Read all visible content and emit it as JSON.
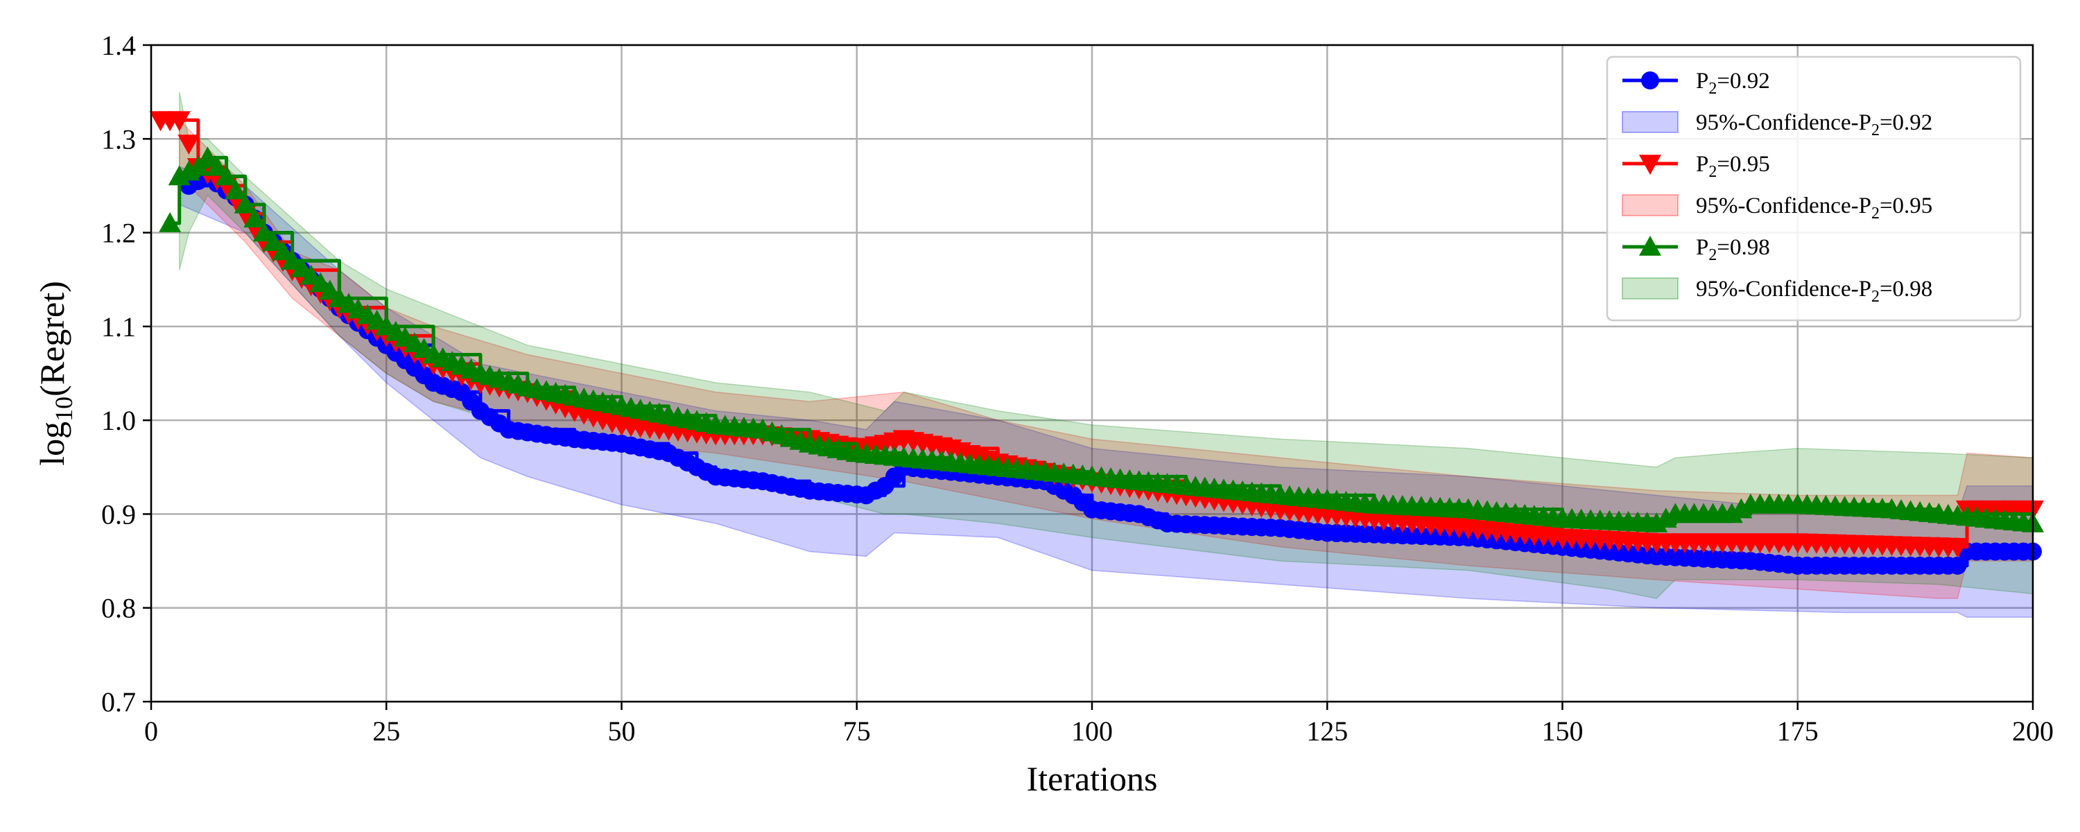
{
  "chart_data": {
    "type": "line",
    "xlabel": "Iterations",
    "ylabel_parts": [
      "log",
      "10",
      "(Regret)"
    ],
    "xlim": [
      0,
      200
    ],
    "ylim": [
      0.7,
      1.4
    ],
    "xticks": [
      0,
      25,
      50,
      75,
      100,
      125,
      150,
      175,
      200
    ],
    "yticks": [
      0.7,
      0.8,
      0.9,
      1.0,
      1.1,
      1.2,
      1.3,
      1.4
    ],
    "ytick_labels": [
      "0.7",
      "0.8",
      "0.9",
      "1.0",
      "1.1",
      "1.2",
      "1.3",
      "1.4"
    ],
    "grid": true,
    "legend_position": "top-right",
    "series": [
      {
        "name": "P2=0.92",
        "legend_parts": [
          "P",
          "2",
          "=0.92"
        ],
        "band_legend_parts": [
          "95%-Confidence-P",
          "2",
          "=0.92"
        ],
        "color": "#0000ff",
        "marker": "circle",
        "points": [
          [
            4,
            1.25
          ],
          [
            6,
            1.26
          ],
          [
            10,
            1.23
          ],
          [
            12,
            1.2
          ],
          [
            15,
            1.17
          ],
          [
            20,
            1.12
          ],
          [
            25,
            1.08
          ],
          [
            30,
            1.04
          ],
          [
            33,
            1.03
          ],
          [
            35,
            1.01
          ],
          [
            38,
            0.99
          ],
          [
            45,
            0.98
          ],
          [
            50,
            0.975
          ],
          [
            55,
            0.965
          ],
          [
            58,
            0.95
          ],
          [
            60,
            0.94
          ],
          [
            65,
            0.935
          ],
          [
            70,
            0.925
          ],
          [
            76,
            0.92
          ],
          [
            78,
            0.93
          ],
          [
            80,
            0.95
          ],
          [
            85,
            0.945
          ],
          [
            90,
            0.94
          ],
          [
            95,
            0.935
          ],
          [
            98,
            0.92
          ],
          [
            100,
            0.905
          ],
          [
            105,
            0.9
          ],
          [
            108,
            0.89
          ],
          [
            120,
            0.885
          ],
          [
            125,
            0.88
          ],
          [
            140,
            0.875
          ],
          [
            150,
            0.865
          ],
          [
            155,
            0.86
          ],
          [
            160,
            0.855
          ],
          [
            170,
            0.85
          ],
          [
            175,
            0.845
          ],
          [
            192,
            0.845
          ],
          [
            193,
            0.86
          ],
          [
            200,
            0.86
          ]
        ],
        "band": [
          [
            3,
            1.23,
            1.27
          ],
          [
            10,
            1.2,
            1.25
          ],
          [
            20,
            1.09,
            1.16
          ],
          [
            25,
            1.04,
            1.12
          ],
          [
            30,
            1.0,
            1.09
          ],
          [
            35,
            0.96,
            1.06
          ],
          [
            40,
            0.94,
            1.05
          ],
          [
            50,
            0.91,
            1.03
          ],
          [
            60,
            0.89,
            1.01
          ],
          [
            70,
            0.86,
            1.0
          ],
          [
            76,
            0.855,
            0.99
          ],
          [
            79,
            0.88,
            1.02
          ],
          [
            90,
            0.875,
            1.0
          ],
          [
            100,
            0.84,
            0.97
          ],
          [
            120,
            0.825,
            0.95
          ],
          [
            140,
            0.81,
            0.94
          ],
          [
            160,
            0.8,
            0.92
          ],
          [
            180,
            0.795,
            0.9
          ],
          [
            192,
            0.795,
            0.9
          ],
          [
            193,
            0.79,
            0.93
          ],
          [
            200,
            0.79,
            0.93
          ]
        ]
      },
      {
        "name": "P2=0.95",
        "legend_parts": [
          "P",
          "2",
          "=0.95"
        ],
        "band_legend_parts": [
          "95%-Confidence-P",
          "2",
          "=0.95"
        ],
        "color": "#ff0000",
        "marker": "triangle-down",
        "points": [
          [
            1,
            1.32
          ],
          [
            2,
            1.32
          ],
          [
            3,
            1.32
          ],
          [
            5,
            1.27
          ],
          [
            8,
            1.25
          ],
          [
            10,
            1.22
          ],
          [
            12,
            1.19
          ],
          [
            15,
            1.16
          ],
          [
            20,
            1.12
          ],
          [
            25,
            1.09
          ],
          [
            30,
            1.06
          ],
          [
            35,
            1.04
          ],
          [
            40,
            1.03
          ],
          [
            45,
            1.01
          ],
          [
            50,
            0.995
          ],
          [
            55,
            0.99
          ],
          [
            60,
            0.985
          ],
          [
            65,
            0.985
          ],
          [
            70,
            0.98
          ],
          [
            75,
            0.97
          ],
          [
            78,
            0.975
          ],
          [
            80,
            0.98
          ],
          [
            85,
            0.97
          ],
          [
            90,
            0.955
          ],
          [
            95,
            0.945
          ],
          [
            100,
            0.935
          ],
          [
            110,
            0.92
          ],
          [
            120,
            0.905
          ],
          [
            130,
            0.895
          ],
          [
            140,
            0.885
          ],
          [
            150,
            0.875
          ],
          [
            160,
            0.87
          ],
          [
            175,
            0.87
          ],
          [
            192,
            0.865
          ],
          [
            193,
            0.905
          ],
          [
            200,
            0.905
          ]
        ],
        "band": [
          [
            3,
            1.26,
            1.32
          ],
          [
            10,
            1.19,
            1.25
          ],
          [
            15,
            1.13,
            1.18
          ],
          [
            20,
            1.09,
            1.16
          ],
          [
            25,
            1.05,
            1.12
          ],
          [
            30,
            1.02,
            1.1
          ],
          [
            40,
            0.995,
            1.07
          ],
          [
            50,
            0.975,
            1.05
          ],
          [
            60,
            0.965,
            1.03
          ],
          [
            70,
            0.95,
            1.02
          ],
          [
            80,
            0.935,
            1.03
          ],
          [
            90,
            0.915,
            1.0
          ],
          [
            100,
            0.895,
            0.98
          ],
          [
            120,
            0.865,
            0.96
          ],
          [
            140,
            0.845,
            0.94
          ],
          [
            160,
            0.83,
            0.925
          ],
          [
            175,
            0.82,
            0.92
          ],
          [
            190,
            0.81,
            0.92
          ],
          [
            192,
            0.81,
            0.92
          ],
          [
            193,
            0.85,
            0.965
          ],
          [
            200,
            0.85,
            0.96
          ]
        ]
      },
      {
        "name": "P2=0.98",
        "legend_parts": [
          "P",
          "2",
          "=0.98"
        ],
        "band_legend_parts": [
          "95%-Confidence-P",
          "2",
          "=0.98"
        ],
        "color": "#008000",
        "marker": "triangle-up",
        "points": [
          [
            2,
            1.21
          ],
          [
            3,
            1.26
          ],
          [
            5,
            1.27
          ],
          [
            6,
            1.28
          ],
          [
            8,
            1.26
          ],
          [
            10,
            1.23
          ],
          [
            12,
            1.2
          ],
          [
            15,
            1.17
          ],
          [
            20,
            1.13
          ],
          [
            25,
            1.1
          ],
          [
            30,
            1.07
          ],
          [
            35,
            1.05
          ],
          [
            40,
            1.035
          ],
          [
            45,
            1.025
          ],
          [
            50,
            1.015
          ],
          [
            55,
            1.005
          ],
          [
            60,
            0.995
          ],
          [
            65,
            0.99
          ],
          [
            70,
            0.975
          ],
          [
            75,
            0.965
          ],
          [
            80,
            0.96
          ],
          [
            85,
            0.955
          ],
          [
            90,
            0.95
          ],
          [
            95,
            0.945
          ],
          [
            100,
            0.94
          ],
          [
            110,
            0.93
          ],
          [
            120,
            0.92
          ],
          [
            130,
            0.91
          ],
          [
            140,
            0.905
          ],
          [
            150,
            0.895
          ],
          [
            160,
            0.89
          ],
          [
            162,
            0.9
          ],
          [
            168,
            0.9
          ],
          [
            170,
            0.91
          ],
          [
            175,
            0.91
          ],
          [
            185,
            0.905
          ],
          [
            190,
            0.9
          ],
          [
            200,
            0.89
          ]
        ],
        "band": [
          [
            3,
            1.16,
            1.35
          ],
          [
            4,
            1.2,
            1.3
          ],
          [
            6,
            1.24,
            1.3
          ],
          [
            10,
            1.2,
            1.26
          ],
          [
            20,
            1.09,
            1.17
          ],
          [
            25,
            1.05,
            1.14
          ],
          [
            30,
            1.02,
            1.12
          ],
          [
            40,
            0.99,
            1.08
          ],
          [
            50,
            0.97,
            1.06
          ],
          [
            60,
            0.95,
            1.04
          ],
          [
            70,
            0.92,
            1.03
          ],
          [
            78,
            0.9,
            1.01
          ],
          [
            80,
            0.9,
            1.03
          ],
          [
            90,
            0.89,
            1.01
          ],
          [
            100,
            0.875,
            0.995
          ],
          [
            120,
            0.85,
            0.98
          ],
          [
            140,
            0.84,
            0.97
          ],
          [
            155,
            0.82,
            0.955
          ],
          [
            160,
            0.81,
            0.95
          ],
          [
            162,
            0.83,
            0.96
          ],
          [
            168,
            0.83,
            0.965
          ],
          [
            175,
            0.83,
            0.97
          ],
          [
            190,
            0.825,
            0.965
          ],
          [
            200,
            0.815,
            0.96
          ]
        ]
      }
    ]
  }
}
